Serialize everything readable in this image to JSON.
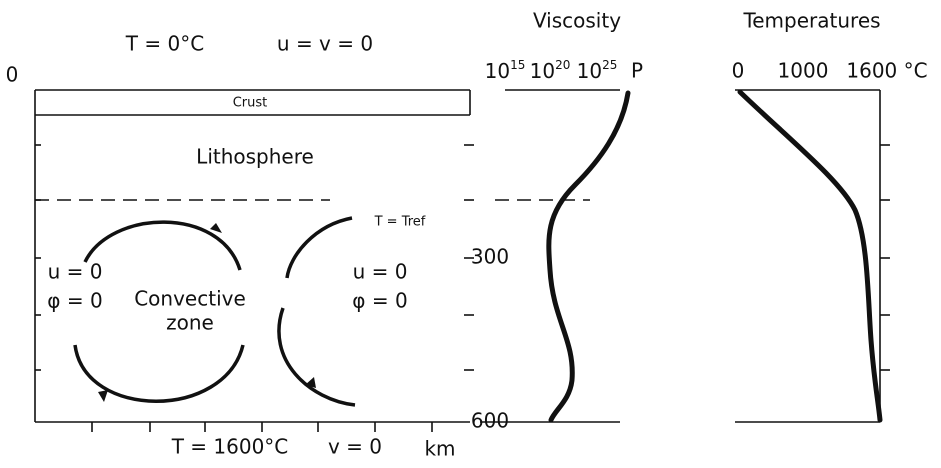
{
  "left_panel": {
    "top_labels": [
      "T = 0°C",
      "u = v = 0"
    ],
    "depth_top": "0",
    "crust": "Crust",
    "lithosphere": "Lithosphere",
    "tref": "T = Tref",
    "left_bc": [
      "u = 0",
      "φ = 0"
    ],
    "right_bc": [
      "u = 0",
      "φ = 0"
    ],
    "convective": [
      "Convective",
      "zone"
    ],
    "bottom_labels": [
      "T = 1600°C",
      "v = 0"
    ]
  },
  "depth_axis": {
    "ticks": [
      "300",
      "600"
    ],
    "unit": "km"
  },
  "viscosity": {
    "title": "Viscosity",
    "ticks": [
      {
        "base": "10",
        "exp": "15"
      },
      {
        "base": "10",
        "exp": "20"
      },
      {
        "base": "10",
        "exp": "25"
      }
    ],
    "unit": "P"
  },
  "temperature": {
    "title": "Temperatures",
    "ticks": [
      "0",
      "1000",
      "1600 °C"
    ]
  }
}
